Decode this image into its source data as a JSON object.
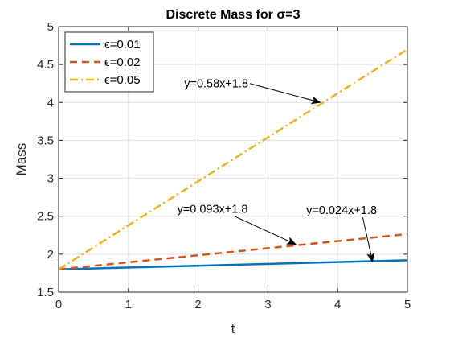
{
  "chart_data": {
    "type": "line",
    "title": "Discrete Mass for σ=3",
    "xlabel": "t",
    "ylabel": "Mass",
    "xlim": [
      0,
      5
    ],
    "ylim": [
      1.5,
      5
    ],
    "x_ticks": [
      0,
      1,
      2,
      3,
      4,
      5
    ],
    "y_ticks": [
      1.5,
      2,
      2.5,
      3,
      3.5,
      4,
      4.5,
      5
    ],
    "x_tick_labels": [
      "0",
      "1",
      "2",
      "3",
      "4",
      "5"
    ],
    "y_tick_labels": [
      "1.5",
      "2",
      "2.5",
      "3",
      "3.5",
      "4",
      "4.5",
      "5"
    ],
    "grid": true,
    "legend_position": "top-left",
    "series": [
      {
        "name": "ϵ=0.01",
        "x": [
          0,
          5
        ],
        "values": [
          1.8,
          1.92
        ],
        "color": "#0072BD",
        "style": "solid"
      },
      {
        "name": "ϵ=0.02",
        "x": [
          0,
          5
        ],
        "values": [
          1.8,
          2.265
        ],
        "color": "#D95319",
        "style": "dashed"
      },
      {
        "name": "ϵ=0.05",
        "x": [
          0,
          5
        ],
        "values": [
          1.8,
          4.7
        ],
        "color": "#EDB120",
        "style": "dashdot"
      }
    ],
    "annotations": [
      {
        "text": "y=0.58x+1.8",
        "text_x": 1.8,
        "text_y": 4.25,
        "arrow_to": [
          3.75,
          4.0
        ]
      },
      {
        "text": "y=0.093x+1.8",
        "text_x": 1.7,
        "text_y": 2.6,
        "arrow_to": [
          3.4,
          2.13
        ]
      },
      {
        "text": "y=0.024x+1.8",
        "text_x": 3.55,
        "text_y": 2.58,
        "arrow_to": [
          4.5,
          1.9
        ]
      }
    ]
  }
}
